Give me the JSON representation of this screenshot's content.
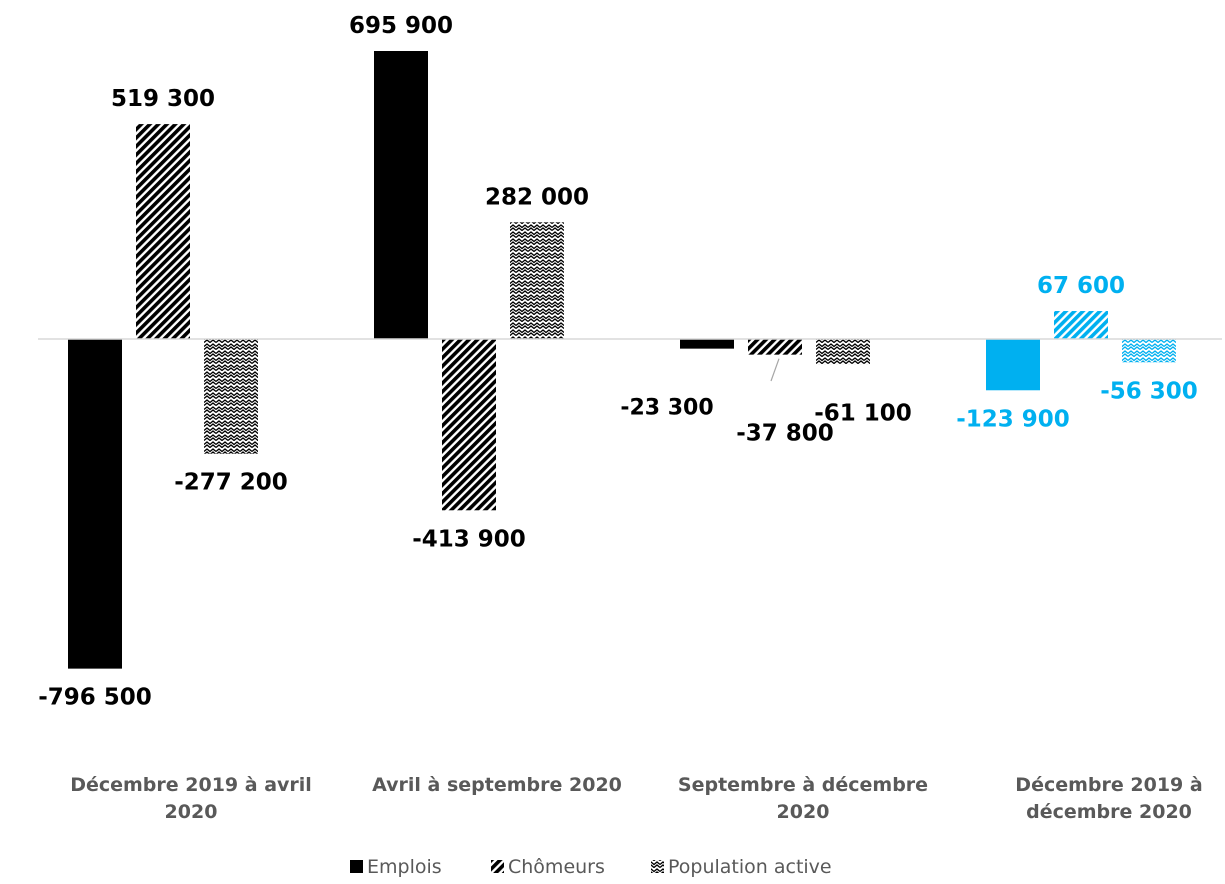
{
  "chart_data": {
    "type": "bar",
    "categories": [
      [
        "Décembre 2019 à avril",
        "2020"
      ],
      [
        "Avril à septembre 2020"
      ],
      [
        "Septembre à décembre",
        "2020"
      ],
      [
        "Décembre 2019 à",
        "décembre 2020"
      ]
    ],
    "series": [
      {
        "name": "Emplois",
        "values": [
          -796500,
          695900,
          -23300,
          -123900
        ],
        "labels": [
          "-796 500",
          "695 900",
          "-23 300",
          "-123 900"
        ]
      },
      {
        "name": "Chômeurs",
        "values": [
          519300,
          -413900,
          -37800,
          67600
        ],
        "labels": [
          "519 300",
          "-413 900",
          "-37 800",
          "67 600"
        ]
      },
      {
        "name": "Population active",
        "values": [
          -277200,
          282000,
          -61100,
          -56300
        ],
        "labels": [
          "-277 200",
          "282 000",
          "-61 100",
          "-56 300"
        ]
      }
    ],
    "highlight_category_index": 3,
    "ylim": [
      -800000,
      700000
    ],
    "grid": false,
    "legend_position": "bottom",
    "colors": {
      "default": "#000000",
      "highlight": "#00b0f0",
      "axis": "#d9d9d9",
      "text": "#000000",
      "category_text": "#595959"
    }
  }
}
